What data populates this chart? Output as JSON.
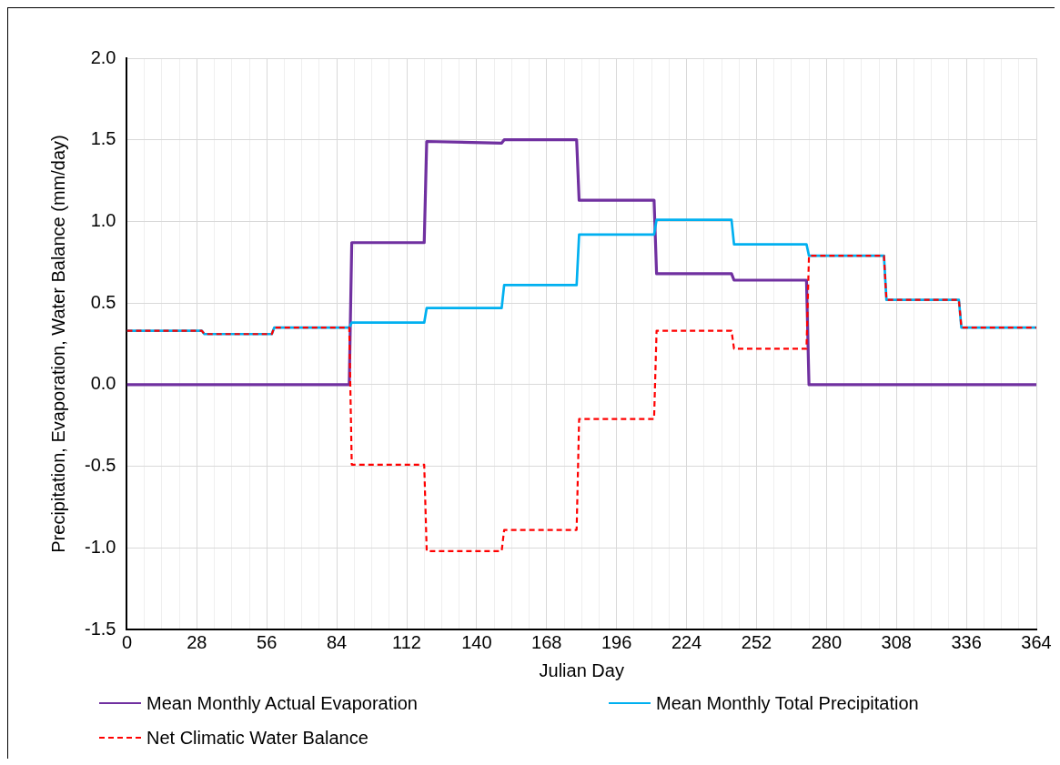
{
  "chart_data": {
    "type": "line",
    "xlabel": "Julian Day",
    "ylabel": "Precipitation, Evaporation, Water Balance (mm/day)",
    "x": [
      0,
      30,
      31,
      58,
      59,
      89,
      90,
      119,
      120,
      150,
      151,
      180,
      181,
      211,
      212,
      242,
      243,
      272,
      273,
      303,
      304,
      333,
      334,
      364
    ],
    "series": [
      {
        "name": "Mean Monthly Actual Evaporation",
        "color": "#7030a0",
        "line_style": "solid",
        "values": [
          0,
          0,
          0,
          0,
          0,
          0,
          0.87,
          0.87,
          1.49,
          1.48,
          1.5,
          1.5,
          1.13,
          1.13,
          0.68,
          0.68,
          0.64,
          0.64,
          0,
          0,
          0,
          0,
          0,
          0
        ]
      },
      {
        "name": "Mean Monthly Total Precipitation",
        "color": "#00b0f0",
        "line_style": "solid",
        "values": [
          0.33,
          0.33,
          0.31,
          0.31,
          0.35,
          0.35,
          0.38,
          0.38,
          0.47,
          0.47,
          0.61,
          0.61,
          0.92,
          0.92,
          1.01,
          1.01,
          0.86,
          0.86,
          0.79,
          0.79,
          0.52,
          0.52,
          0.35,
          0.35
        ]
      },
      {
        "name": "Net Climatic Water Balance",
        "color": "#ff0000",
        "line_style": "dashed",
        "values": [
          0.33,
          0.33,
          0.31,
          0.31,
          0.35,
          0.35,
          -0.49,
          -0.49,
          -1.02,
          -1.02,
          -0.89,
          -0.89,
          -0.21,
          -0.21,
          0.33,
          0.33,
          0.22,
          0.22,
          0.79,
          0.79,
          0.52,
          0.52,
          0.35,
          0.35
        ]
      }
    ],
    "xlim": [
      0,
      364
    ],
    "xticks": [
      0,
      {
        "value": 7,
        "label": null
      },
      {
        "value": 14,
        "label": null
      },
      {
        "value": 21,
        "label": null
      },
      28,
      {
        "value": 35,
        "label": null
      },
      {
        "value": 42,
        "label": null
      },
      {
        "value": 49,
        "label": null
      },
      56,
      {
        "value": 63,
        "label": null
      },
      {
        "value": 70,
        "label": null
      },
      {
        "value": 77,
        "label": null
      },
      84,
      {
        "value": 91,
        "label": null
      },
      {
        "value": 98,
        "label": null
      },
      {
        "value": 105,
        "label": null
      },
      112,
      {
        "value": 119,
        "label": null
      },
      {
        "value": 126,
        "label": null
      },
      {
        "value": 133,
        "label": null
      },
      140,
      {
        "value": 147,
        "label": null
      },
      {
        "value": 154,
        "label": null
      },
      {
        "value": 161,
        "label": null
      },
      168,
      {
        "value": 175,
        "label": null
      },
      {
        "value": 182,
        "label": null
      },
      {
        "value": 189,
        "label": null
      },
      196,
      {
        "value": 203,
        "label": null
      },
      {
        "value": 210,
        "label": null
      },
      {
        "value": 217,
        "label": null
      },
      224,
      {
        "value": 231,
        "label": null
      },
      {
        "value": 238,
        "label": null
      },
      {
        "value": 245,
        "label": null
      },
      252,
      {
        "value": 259,
        "label": null
      },
      {
        "value": 266,
        "label": null
      },
      {
        "value": 273,
        "label": null
      },
      280,
      {
        "value": 287,
        "label": null
      },
      {
        "value": 294,
        "label": null
      },
      {
        "value": 301,
        "label": null
      },
      308,
      {
        "value": 315,
        "label": null
      },
      {
        "value": 322,
        "label": null
      },
      {
        "value": 329,
        "label": null
      },
      336,
      {
        "value": 343,
        "label": null
      },
      {
        "value": 350,
        "label": null
      },
      {
        "value": 357,
        "label": null
      },
      364
    ],
    "ylim": [
      -1.5,
      2
    ],
    "yticks": [
      {
        "value": -1.5,
        "label": "-1.5"
      },
      {
        "value": -1,
        "label": "-1.0"
      },
      {
        "value": -0.5,
        "label": "-0.5"
      },
      {
        "value": 0,
        "label": "0.0"
      },
      {
        "value": 0.5,
        "label": "0.5"
      },
      {
        "value": 1,
        "label": "1.0"
      },
      {
        "value": 1.5,
        "label": "1.5"
      },
      {
        "value": 2,
        "label": "2.0"
      }
    ],
    "grid": true,
    "legend": "bottom",
    "marker": "none"
  }
}
